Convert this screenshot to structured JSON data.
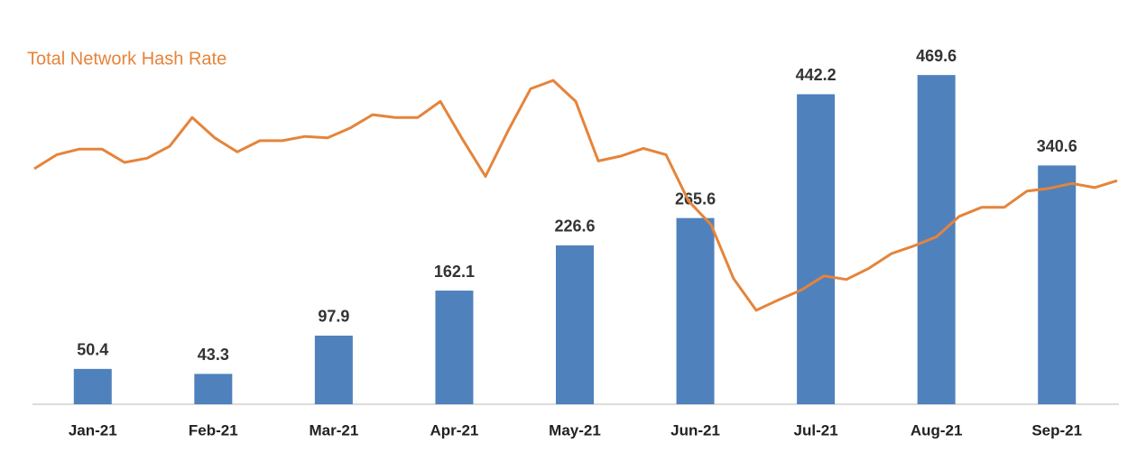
{
  "chart_data": {
    "type": "bar",
    "categories": [
      "Jan-21",
      "Feb-21",
      "Mar-21",
      "Apr-21",
      "May-21",
      "Jun-21",
      "Jul-21",
      "Aug-21",
      "Sep-21"
    ],
    "values": [
      50.4,
      43.3,
      97.9,
      162.1,
      226.6,
      265.6,
      442.2,
      469.6,
      340.6
    ],
    "color": "#4f81bd",
    "ylim": [
      0,
      520
    ],
    "line": {
      "name": "Total Network Hash Rate",
      "color": "#e5843a",
      "values": [
        336,
        356,
        364,
        364,
        345,
        351,
        368,
        409,
        380,
        360,
        376,
        376,
        382,
        380,
        394,
        413,
        409,
        409,
        432,
        377,
        325,
        390,
        450,
        462,
        432,
        347,
        354,
        365,
        356,
        290,
        256,
        179,
        134,
        149,
        163,
        183,
        178,
        194,
        215,
        226,
        239,
        268,
        281,
        281,
        304,
        308,
        315,
        309,
        319
      ]
    }
  }
}
